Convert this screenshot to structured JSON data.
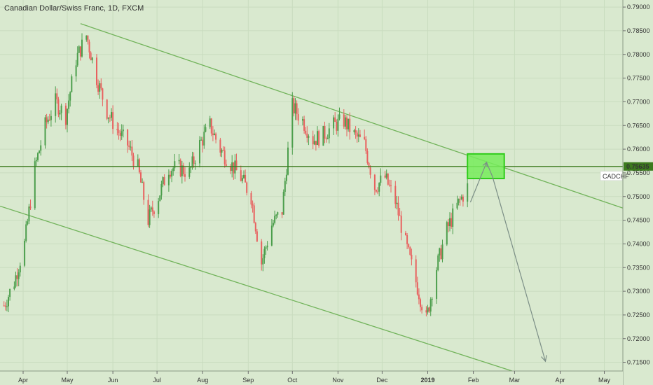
{
  "chart_title": "Canadian Dollar/Swiss Franc, 1D, FXCM",
  "symbol_label": "CADCHF",
  "colors": {
    "background": "#d9e9cf",
    "up": "#4c9e4c",
    "down": "#e8615f",
    "channel": "#71b35a",
    "hline": "#3c7a1e",
    "box_fill": "#76ec5a",
    "box_stroke": "#2fcc1a",
    "arrow": "#7b8e86",
    "price_tag": "#3c7a1e"
  },
  "chart_data": {
    "type": "candlestick",
    "title": "Canadian Dollar/Swiss Franc, 1D, FXCM",
    "symbol": "CADCHF",
    "ylim": [
      0.7142,
      0.7909
    ],
    "y_ticks": [
      "0.79000",
      "0.78500",
      "0.78000",
      "0.77500",
      "0.77000",
      "0.76500",
      "0.76000",
      "0.75500",
      "0.75000",
      "0.74500",
      "0.74000",
      "0.73500",
      "0.73000",
      "0.72500",
      "0.72000",
      "0.71500"
    ],
    "last_price": "0.75635",
    "x_ticks": [
      {
        "label": "Apr",
        "date": "2018-04-01"
      },
      {
        "label": "May",
        "date": "2018-05-01"
      },
      {
        "label": "Jun",
        "date": "2018-06-01"
      },
      {
        "label": "Jul",
        "date": "2018-07-01"
      },
      {
        "label": "Aug",
        "date": "2018-08-01"
      },
      {
        "label": "Sep",
        "date": "2018-09-01"
      },
      {
        "label": "Oct",
        "date": "2018-10-01"
      },
      {
        "label": "Nov",
        "date": "2018-11-01"
      },
      {
        "label": "Dec",
        "date": "2018-12-01"
      },
      {
        "label": "2019",
        "date": "2019-01-01",
        "bold": true
      },
      {
        "label": "Feb",
        "date": "2019-02-01"
      },
      {
        "label": "Mar",
        "date": "2019-03-01"
      },
      {
        "label": "Apr",
        "date": "2019-04-01"
      },
      {
        "label": "May",
        "date": "2019-05-01"
      }
    ],
    "close_series": [
      [
        "2018-03-19",
        0.727
      ],
      [
        "2018-03-26",
        0.732
      ],
      [
        "2018-04-02",
        0.74
      ],
      [
        "2018-04-09",
        0.756
      ],
      [
        "2018-04-16",
        0.765
      ],
      [
        "2018-04-23",
        0.77
      ],
      [
        "2018-04-30",
        0.767
      ],
      [
        "2018-05-07",
        0.779
      ],
      [
        "2018-05-14",
        0.784
      ],
      [
        "2018-05-21",
        0.775
      ],
      [
        "2018-05-28",
        0.768
      ],
      [
        "2018-06-04",
        0.764
      ],
      [
        "2018-06-11",
        0.761
      ],
      [
        "2018-06-18",
        0.756
      ],
      [
        "2018-06-25",
        0.745
      ],
      [
        "2018-07-02",
        0.75
      ],
      [
        "2018-07-09",
        0.756
      ],
      [
        "2018-07-16",
        0.756
      ],
      [
        "2018-07-23",
        0.755
      ],
      [
        "2018-07-30",
        0.761
      ],
      [
        "2018-08-06",
        0.765
      ],
      [
        "2018-08-13",
        0.76
      ],
      [
        "2018-08-20",
        0.757
      ],
      [
        "2018-08-27",
        0.754
      ],
      [
        "2018-09-03",
        0.75
      ],
      [
        "2018-09-10",
        0.736
      ],
      [
        "2018-09-17",
        0.744
      ],
      [
        "2018-09-24",
        0.747
      ],
      [
        "2018-10-01",
        0.769
      ],
      [
        "2018-10-08",
        0.766
      ],
      [
        "2018-10-15",
        0.762
      ],
      [
        "2018-10-22",
        0.763
      ],
      [
        "2018-10-29",
        0.765
      ],
      [
        "2018-11-05",
        0.766
      ],
      [
        "2018-11-12",
        0.763
      ],
      [
        "2018-11-19",
        0.761
      ],
      [
        "2018-11-26",
        0.752
      ],
      [
        "2018-12-03",
        0.754
      ],
      [
        "2018-12-10",
        0.749
      ],
      [
        "2018-12-17",
        0.74
      ],
      [
        "2018-12-24",
        0.732
      ],
      [
        "2018-12-31",
        0.724
      ],
      [
        "2019-01-07",
        0.735
      ],
      [
        "2019-01-14",
        0.743
      ],
      [
        "2019-01-21",
        0.748
      ],
      [
        "2019-01-28",
        0.752
      ]
    ],
    "annotations": {
      "upper_channel": [
        [
          "2018-05-10",
          0.7865
        ],
        [
          "2019-04-30",
          0.749
        ]
      ],
      "lower_channel": [
        [
          "2018-03-01",
          0.7495
        ],
        [
          "2019-03-01",
          0.713
        ]
      ],
      "horizontal_line": 0.75635,
      "target_box": {
        "x0": "2019-01-28",
        "x1": "2019-02-22",
        "y0": 0.7538,
        "y1": 0.759
      },
      "arrow_path": [
        [
          "2019-01-30",
          0.7488
        ],
        [
          "2019-02-10",
          0.7572
        ],
        [
          "2019-02-14",
          0.7542
        ],
        [
          "2019-03-22",
          0.7152
        ]
      ]
    }
  }
}
